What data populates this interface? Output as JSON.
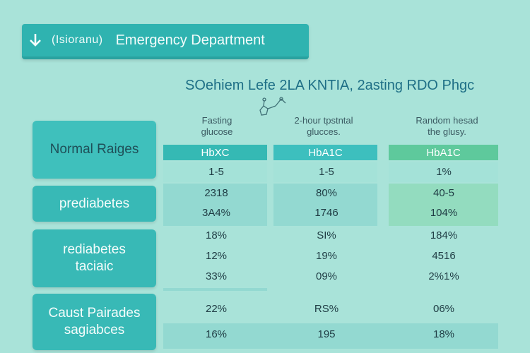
{
  "header": {
    "subtitle": "(Isioranu)",
    "title": "Emergency Department"
  },
  "page_title": "SOehiem Lefe 2LA KNTIA, 2asting RDO Phgc",
  "columns": [
    {
      "heading": [
        "Fasting",
        "glucose"
      ],
      "badge": "HbXC",
      "color": "#35b9b4"
    },
    {
      "heading": [
        "2-hour tpstntal",
        "glucces."
      ],
      "badge": "HbA1C",
      "color": "#3dbfbe"
    },
    {
      "heading": [
        "Random hesad",
        "the glusy."
      ],
      "badge": "HbA1C",
      "color": "#5ec99c"
    }
  ],
  "rows": [
    {
      "label": [
        "Normal Raiges"
      ]
    },
    {
      "label": [
        "prediabetes"
      ]
    },
    {
      "label": [
        "rediabetes",
        "taciaic"
      ]
    },
    {
      "label": [
        "Caust Pairades",
        "sagiabces"
      ]
    }
  ],
  "cells": [
    [
      "1-5",
      "1-5",
      "1%"
    ],
    [
      "2318",
      "80%",
      "40-5"
    ],
    [
      "3A4%",
      "1746",
      "104%"
    ],
    [
      "18%",
      "SI%",
      "184%"
    ],
    [
      "12%",
      "19%",
      "4516"
    ],
    [
      "33%",
      "09%",
      "2%1%"
    ],
    [
      "22%",
      "RS%",
      "06%"
    ],
    [
      "16%",
      "195",
      "18%"
    ]
  ]
}
